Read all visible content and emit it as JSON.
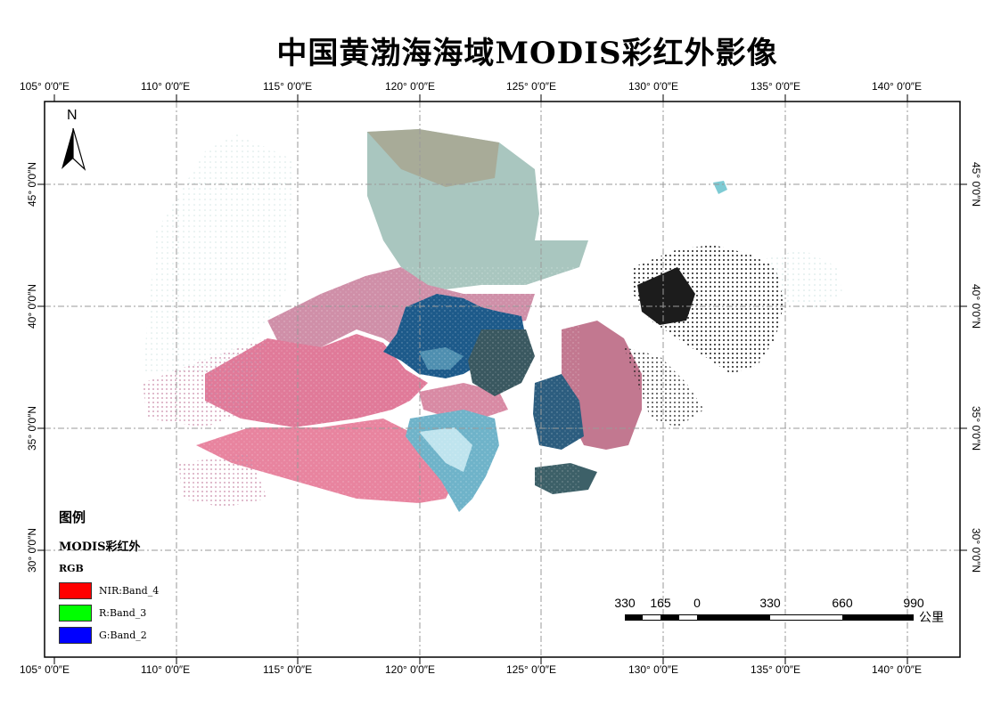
{
  "title": "中国黄渤海海域MODIS彩红外影像",
  "lon_labels": [
    "105° 0′0″E",
    "110° 0′0″E",
    "115° 0′0″E",
    "120° 0′0″E",
    "125° 0′0″E",
    "130° 0′0″E",
    "135° 0′0″E",
    "140° 0′0″E"
  ],
  "lat_labels": [
    "30° 0′0″N",
    "35° 0′0″N",
    "40° 0′0″N",
    "45° 0′0″N"
  ],
  "north_label": "N",
  "legend": {
    "title": "图例",
    "layer": "MODIS彩红外",
    "rgb": "RGB",
    "items": [
      {
        "label": "NIR:Band_4",
        "color": "#ff0000"
      },
      {
        "label": "R:Band_3",
        "color": "#00ff00"
      },
      {
        "label": "G:Band_2",
        "color": "#0000ff"
      }
    ]
  },
  "scale_bar": {
    "labels": [
      "330",
      "165",
      "0",
      "330",
      "660",
      "990"
    ],
    "unit": "公里"
  },
  "colors": {
    "land_pink": "#d97a9a",
    "land_gray": "#9fb8ae",
    "sea_blue": "#1a4f7a",
    "sea_dark": "#2b4a55"
  }
}
